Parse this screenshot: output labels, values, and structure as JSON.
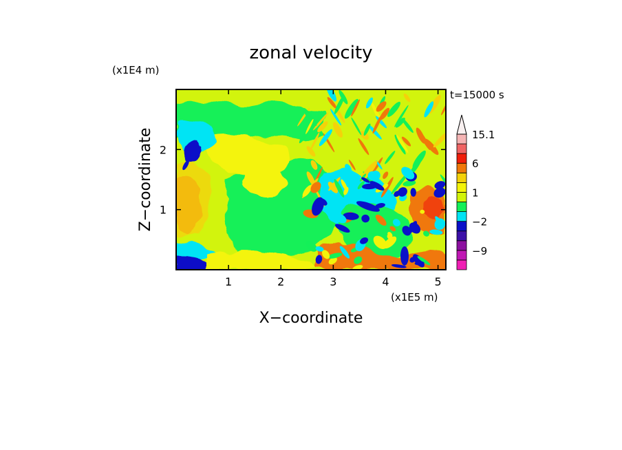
{
  "chart_data": {
    "type": "heatmap",
    "title": "zonal velocity",
    "time_label": "t=15000 s",
    "xlabel": "X−coordinate",
    "ylabel": "Z−coordinate",
    "x_unit": "(x1E5 m)",
    "y_unit": "(x1E4 m)",
    "xlim": [
      0,
      5.15
    ],
    "ylim": [
      0,
      3.0
    ],
    "x_ticks": [
      1,
      2,
      3,
      4,
      5
    ],
    "y_ticks": [
      1,
      2
    ],
    "x_tick_labels": [
      "1",
      "2",
      "3",
      "4",
      "5"
    ],
    "y_tick_labels": [
      "1",
      "2"
    ],
    "colorbar": {
      "levels": [
        -15,
        -12,
        -9,
        -6,
        -4,
        -2,
        -1,
        0,
        1,
        2,
        3,
        6,
        9,
        12,
        15.1
      ],
      "colors": [
        "#f01fb4",
        "#c018b4",
        "#8c10a0",
        "#3c10a8",
        "#0a10c8",
        "#00e4f4",
        "#14f058",
        "#d2f40a",
        "#f4f40a",
        "#f4d20a",
        "#f0780a",
        "#f01e0a",
        "#f06464",
        "#f5b4b4"
      ],
      "tick_labels": [
        {
          "value": 15.1,
          "label": "15.1"
        },
        {
          "value": 6,
          "label": "6"
        },
        {
          "value": 1,
          "label": "1"
        },
        {
          "value": -2,
          "label": "−2"
        },
        {
          "value": -9,
          "label": "−9"
        }
      ]
    }
  }
}
